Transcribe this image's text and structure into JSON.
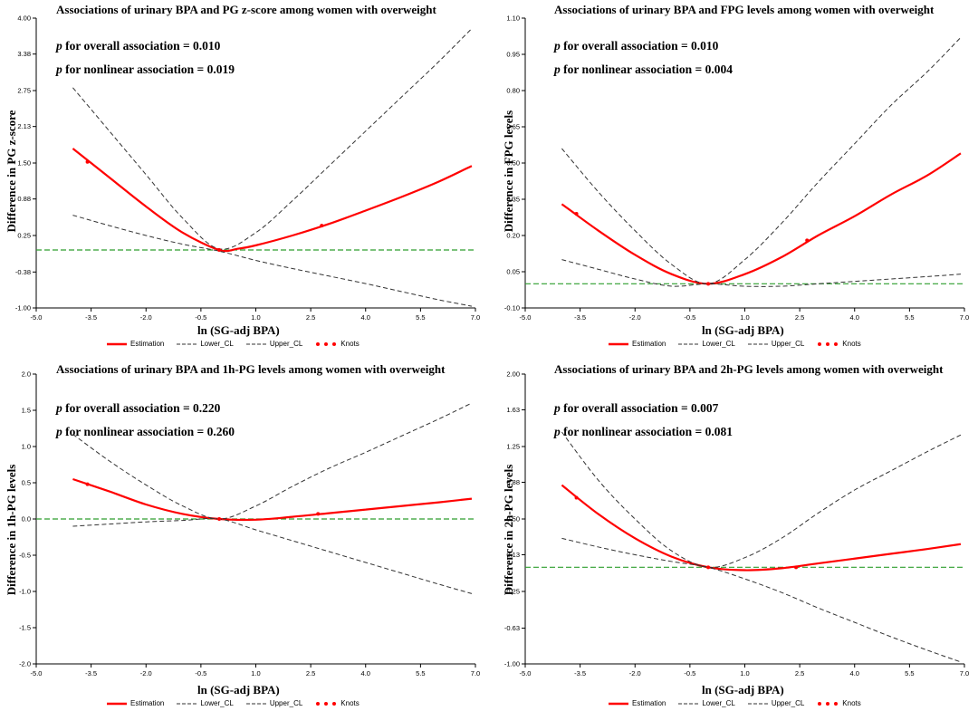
{
  "chart_data": [
    {
      "type": "line",
      "title": "Associations of urinary BPA and PG z-score among women with overweight",
      "p_overall_label": "p",
      "p_overall_text": " for overall association = 0.010",
      "p_nonlinear_label": "p",
      "p_nonlinear_text": " for nonlinear association = 0.019",
      "xlabel": "ln (SG-adj BPA)",
      "ylabel": "Difference in PG z-score",
      "xlim": [
        -5.0,
        7.0
      ],
      "ylim": [
        -1.0,
        4.0
      ],
      "xticks": [
        "-5.0",
        "-3.5",
        "-2.0",
        "-0.5",
        "1.0",
        "2.5",
        "4.0",
        "5.5",
        "7.0"
      ],
      "yticks": [
        "4.00",
        "3.38",
        "2.75",
        "2.13",
        "1.50",
        "0.88",
        "0.25",
        "-0.38",
        "-1.00"
      ],
      "reference_y": 0,
      "series": [
        {
          "name": "Estimation",
          "x": [
            -4.0,
            -3.0,
            -2.0,
            -1.0,
            0.0,
            0.5,
            1.0,
            2.0,
            3.0,
            4.0,
            5.0,
            6.0,
            6.9
          ],
          "values": [
            1.75,
            1.25,
            0.75,
            0.3,
            0.0,
            0.02,
            0.08,
            0.25,
            0.45,
            0.68,
            0.92,
            1.18,
            1.45
          ]
        },
        {
          "name": "Lower_CL",
          "x": [
            -4.0,
            -3.0,
            -2.0,
            -1.0,
            0.0,
            1.0,
            2.0,
            3.0,
            4.0,
            5.0,
            6.0,
            6.9
          ],
          "values": [
            0.6,
            0.42,
            0.25,
            0.1,
            -0.02,
            -0.18,
            -0.32,
            -0.45,
            -0.58,
            -0.72,
            -0.86,
            -0.97
          ]
        },
        {
          "name": "Upper_CL",
          "x": [
            -4.0,
            -3.0,
            -2.0,
            -1.0,
            0.0,
            1.0,
            2.0,
            3.0,
            4.0,
            5.0,
            6.0,
            6.9
          ],
          "values": [
            2.8,
            2.05,
            1.3,
            0.55,
            0.02,
            0.3,
            0.85,
            1.45,
            2.05,
            2.65,
            3.25,
            3.82
          ]
        }
      ],
      "knots": [
        {
          "x": -3.6,
          "y": 1.52
        },
        {
          "x": 0.0,
          "y": 0.0
        },
        {
          "x": 2.8,
          "y": 0.42
        }
      ]
    },
    {
      "type": "line",
      "title": "Associations of urinary BPA and FPG levels among women with overweight",
      "p_overall_label": "p",
      "p_overall_text": " for overall association = 0.010",
      "p_nonlinear_label": "p",
      "p_nonlinear_text": " for nonlinear association = 0.004",
      "xlabel": "ln (SG-adj BPA)",
      "ylabel": "Difference in FPG levels",
      "xlim": [
        -5.0,
        7.0
      ],
      "ylim": [
        -0.1,
        1.1
      ],
      "xticks": [
        "-5.0",
        "-3.5",
        "-2.0",
        "-0.5",
        "1.0",
        "2.5",
        "4.0",
        "5.5",
        "7.0"
      ],
      "yticks": [
        "1.10",
        "0.95",
        "0.80",
        "0.65",
        "0.50",
        "0.35",
        "0.20",
        "0.05",
        "-0.10"
      ],
      "reference_y": 0,
      "series": [
        {
          "name": "Estimation",
          "x": [
            -4.0,
            -3.0,
            -2.0,
            -1.0,
            0.0,
            1.0,
            2.0,
            3.0,
            4.0,
            5.0,
            6.0,
            6.9
          ],
          "values": [
            0.33,
            0.22,
            0.12,
            0.04,
            0.0,
            0.04,
            0.11,
            0.2,
            0.28,
            0.37,
            0.45,
            0.54
          ]
        },
        {
          "name": "Lower_CL",
          "x": [
            -4.0,
            -3.0,
            -2.0,
            -1.0,
            0.0,
            1.0,
            2.0,
            3.0,
            4.0,
            5.0,
            6.0,
            6.9
          ],
          "values": [
            0.1,
            0.06,
            0.02,
            -0.01,
            0.0,
            -0.01,
            -0.01,
            0.0,
            0.01,
            0.02,
            0.03,
            0.04
          ]
        },
        {
          "name": "Upper_CL",
          "x": [
            -4.0,
            -3.0,
            -2.0,
            -1.0,
            0.0,
            1.0,
            2.0,
            3.0,
            4.0,
            5.0,
            6.0,
            6.9
          ],
          "values": [
            0.56,
            0.38,
            0.22,
            0.08,
            0.0,
            0.1,
            0.25,
            0.42,
            0.58,
            0.74,
            0.88,
            1.02
          ]
        }
      ],
      "knots": [
        {
          "x": -3.6,
          "y": 0.29
        },
        {
          "x": 0.0,
          "y": 0.0
        },
        {
          "x": 2.7,
          "y": 0.18
        }
      ]
    },
    {
      "type": "line",
      "title": "Associations of urinary BPA and 1h-PG levels among women with overweight",
      "p_overall_label": "p",
      "p_overall_text": " for overall association = 0.220",
      "p_nonlinear_label": "p",
      "p_nonlinear_text": " for nonlinear association = 0.260",
      "xlabel": "ln (SG-adj BPA)",
      "ylabel": "Difference in 1h-PG levels",
      "xlim": [
        -5.0,
        7.0
      ],
      "ylim": [
        -2.0,
        2.0
      ],
      "xticks": [
        "-5.0",
        "-3.5",
        "-2.0",
        "-0.5",
        "1.0",
        "2.5",
        "4.0",
        "5.5",
        "7.0"
      ],
      "yticks": [
        "2.0",
        "1.5",
        "1.0",
        "0.5",
        "0.0",
        "-0.5",
        "-1.0",
        "-1.5",
        "-2.0"
      ],
      "reference_y": 0,
      "series": [
        {
          "name": "Estimation",
          "x": [
            -4.0,
            -3.0,
            -2.0,
            -1.0,
            0.0,
            1.0,
            2.0,
            3.0,
            4.0,
            5.0,
            6.0,
            6.9
          ],
          "values": [
            0.55,
            0.38,
            0.2,
            0.07,
            0.0,
            -0.01,
            0.03,
            0.08,
            0.13,
            0.18,
            0.23,
            0.28
          ]
        },
        {
          "name": "Lower_CL",
          "x": [
            -4.0,
            -3.0,
            -2.0,
            -1.0,
            0.0,
            1.0,
            2.0,
            3.0,
            4.0,
            5.0,
            6.0,
            6.9
          ],
          "values": [
            -0.1,
            -0.07,
            -0.04,
            -0.02,
            0.0,
            -0.15,
            -0.3,
            -0.45,
            -0.6,
            -0.75,
            -0.9,
            -1.03
          ]
        },
        {
          "name": "Upper_CL",
          "x": [
            -4.0,
            -3.0,
            -2.0,
            -1.0,
            0.0,
            1.0,
            2.0,
            3.0,
            4.0,
            5.0,
            6.0,
            6.9
          ],
          "values": [
            1.17,
            0.8,
            0.47,
            0.18,
            0.0,
            0.18,
            0.45,
            0.7,
            0.92,
            1.15,
            1.38,
            1.6
          ]
        }
      ],
      "knots": [
        {
          "x": -3.6,
          "y": 0.48
        },
        {
          "x": 0.0,
          "y": 0.0
        },
        {
          "x": 2.7,
          "y": 0.07
        }
      ]
    },
    {
      "type": "line",
      "title": "Associations of urinary BPA and 2h-PG levels among women with overweight",
      "p_overall_label": "p",
      "p_overall_text": " for overall association = 0.007",
      "p_nonlinear_label": "p",
      "p_nonlinear_text": " for nonlinear association = 0.081",
      "xlabel": "ln (SG-adj BPA)",
      "ylabel": "Difference in 2h-PG levels",
      "xlim": [
        -5.0,
        7.0
      ],
      "ylim": [
        -1.0,
        2.0
      ],
      "xticks": [
        "-5.0",
        "-3.5",
        "-2.0",
        "-0.5",
        "1.0",
        "2.5",
        "4.0",
        "5.5",
        "7.0"
      ],
      "yticks": [
        "2.00",
        "1.63",
        "1.25",
        "0.88",
        "0.50",
        "0.13",
        "-0.25",
        "-0.63",
        "-1.00"
      ],
      "reference_y": 0,
      "series": [
        {
          "name": "Estimation",
          "x": [
            -4.0,
            -3.0,
            -2.0,
            -1.0,
            0.0,
            1.0,
            2.0,
            3.0,
            4.0,
            5.0,
            6.0,
            6.9
          ],
          "values": [
            0.85,
            0.55,
            0.3,
            0.11,
            0.0,
            -0.03,
            -0.01,
            0.04,
            0.09,
            0.14,
            0.19,
            0.24
          ]
        },
        {
          "name": "Lower_CL",
          "x": [
            -4.0,
            -3.0,
            -2.0,
            -1.0,
            0.0,
            1.0,
            2.0,
            3.0,
            4.0,
            5.0,
            6.0,
            6.9
          ],
          "values": [
            0.3,
            0.21,
            0.13,
            0.06,
            0.0,
            -0.12,
            -0.26,
            -0.42,
            -0.57,
            -0.72,
            -0.86,
            -0.98
          ]
        },
        {
          "name": "Upper_CL",
          "x": [
            -4.0,
            -3.0,
            -2.0,
            -1.0,
            0.0,
            1.0,
            2.0,
            3.0,
            4.0,
            5.0,
            6.0,
            6.9
          ],
          "values": [
            1.4,
            0.9,
            0.5,
            0.17,
            0.0,
            0.1,
            0.3,
            0.56,
            0.8,
            1.0,
            1.2,
            1.37
          ]
        }
      ],
      "knots": [
        {
          "x": -3.6,
          "y": 0.72
        },
        {
          "x": 0.0,
          "y": 0.0
        },
        {
          "x": 2.4,
          "y": 0.0
        }
      ]
    }
  ],
  "legend": {
    "estimation": "Estimation",
    "lower": "Lower_CL",
    "upper": "Upper_CL",
    "knots": "Knots"
  },
  "colors": {
    "estimation": "#ff0000",
    "ci": "#333333",
    "reference": "#2e9e2e"
  }
}
